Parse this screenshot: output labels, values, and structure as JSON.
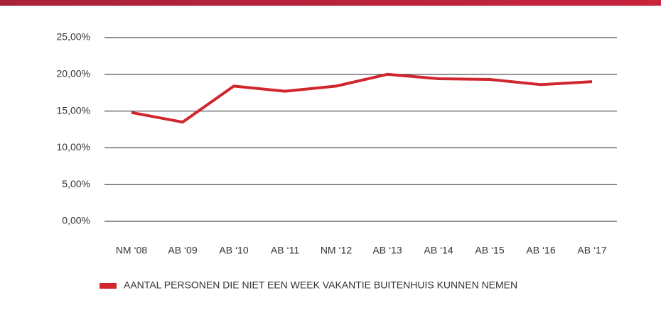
{
  "chart_data": {
    "type": "line",
    "categories": [
      "NM ‘08",
      "AB ‘09",
      "AB ‘10",
      "AB ‘11",
      "NM ‘12",
      "AB ‘13",
      "AB ‘14",
      "AB ‘15",
      "AB ‘16",
      "AB ‘17"
    ],
    "series": [
      {
        "name": "AANTAL PERSONEN DIE NIET EEN WEEK VAKANTIE BUITENHUIS KUNNEN NEMEN",
        "color": "#d1262e",
        "values": [
          14.8,
          13.5,
          18.4,
          17.7,
          18.4,
          20.0,
          19.4,
          19.3,
          18.6,
          19.0
        ]
      }
    ],
    "ylim": [
      0,
      25
    ],
    "yticks": [
      {
        "value": 0,
        "label": "0,00%"
      },
      {
        "value": 5,
        "label": "5,00%"
      },
      {
        "value": 10,
        "label": "10,00%"
      },
      {
        "value": 15,
        "label": "15,00%"
      },
      {
        "value": 20,
        "label": "20,00%"
      },
      {
        "value": 25,
        "label": "25,00%"
      }
    ],
    "grid": true
  }
}
